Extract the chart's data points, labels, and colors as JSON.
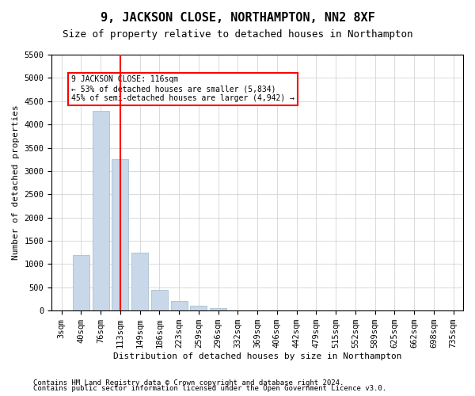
{
  "title": "9, JACKSON CLOSE, NORTHAMPTON, NN2 8XF",
  "subtitle": "Size of property relative to detached houses in Northampton",
  "xlabel": "Distribution of detached houses by size in Northampton",
  "ylabel": "Number of detached properties",
  "footnote1": "Contains HM Land Registry data © Crown copyright and database right 2024.",
  "footnote2": "Contains public sector information licensed under the Open Government Licence v3.0.",
  "categories": [
    "3sqm",
    "40sqm",
    "76sqm",
    "113sqm",
    "149sqm",
    "186sqm",
    "223sqm",
    "259sqm",
    "296sqm",
    "332sqm",
    "369sqm",
    "406sqm",
    "442sqm",
    "479sqm",
    "515sqm",
    "552sqm",
    "589sqm",
    "625sqm",
    "662sqm",
    "698sqm",
    "735sqm"
  ],
  "values": [
    0,
    1200,
    4300,
    3250,
    1250,
    450,
    200,
    100,
    60,
    0,
    0,
    0,
    0,
    0,
    0,
    0,
    0,
    0,
    0,
    0,
    0
  ],
  "bar_color": "#c8d8e8",
  "bar_edge_color": "#a0b8c8",
  "vline_x": 3,
  "vline_color": "red",
  "annotation_text": "9 JACKSON CLOSE: 116sqm\n← 53% of detached houses are smaller (5,834)\n45% of semi-detached houses are larger (4,942) →",
  "annotation_box_color": "white",
  "annotation_box_edge": "red",
  "ylim": [
    0,
    5500
  ],
  "yticks": [
    0,
    500,
    1000,
    1500,
    2000,
    2500,
    3000,
    3500,
    4000,
    4500,
    5000,
    5500
  ],
  "title_fontsize": 11,
  "subtitle_fontsize": 9,
  "axis_fontsize": 8,
  "tick_fontsize": 7.5,
  "footnote_fontsize": 6.5
}
